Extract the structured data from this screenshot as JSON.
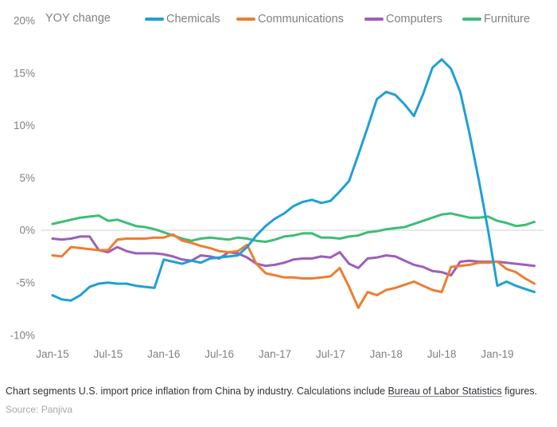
{
  "header": {
    "axis_note": "YOY change"
  },
  "colors": {
    "gridline": "#dbdbdb",
    "axis_text": "#7e8083",
    "caption_text": "#2f3136",
    "source_text": "#a5a7aa"
  },
  "chart_data": {
    "type": "line",
    "title": "",
    "ylabel": "YOY change",
    "ylim": [
      -10,
      20
    ],
    "y_ticks": [
      20,
      15,
      10,
      5,
      0,
      -5,
      -10
    ],
    "y_tick_suffix": "%",
    "zero_gridline": true,
    "grid": "zero-line-only",
    "legend_position": "top",
    "x_tick_labels": [
      "Jan-15",
      "Jul-15",
      "Jan-16",
      "Jul-16",
      "Jan-17",
      "Jul-17",
      "Jan-18",
      "Jul-18",
      "Jan-19"
    ],
    "x_tick_interval_months": 6,
    "x": [
      "Jan-15",
      "Feb-15",
      "Mar-15",
      "Apr-15",
      "May-15",
      "Jun-15",
      "Jul-15",
      "Aug-15",
      "Sep-15",
      "Oct-15",
      "Nov-15",
      "Dec-15",
      "Jan-16",
      "Feb-16",
      "Mar-16",
      "Apr-16",
      "May-16",
      "Jun-16",
      "Jul-16",
      "Aug-16",
      "Sep-16",
      "Oct-16",
      "Nov-16",
      "Dec-16",
      "Jan-17",
      "Feb-17",
      "Mar-17",
      "Apr-17",
      "May-17",
      "Jun-17",
      "Jul-17",
      "Aug-17",
      "Sep-17",
      "Oct-17",
      "Nov-17",
      "Dec-17",
      "Jan-18",
      "Feb-18",
      "Mar-18",
      "Apr-18",
      "May-18",
      "Jun-18",
      "Jul-18",
      "Aug-18",
      "Sep-18",
      "Oct-18",
      "Nov-18",
      "Dec-18",
      "Jan-19",
      "Feb-19",
      "Mar-19",
      "Apr-19",
      "May-19"
    ],
    "series": [
      {
        "name": "Chemicals",
        "color": "#1fa0d5",
        "values": [
          -6.2,
          -6.6,
          -6.7,
          -6.2,
          -5.4,
          -5.1,
          -5.0,
          -5.1,
          -5.1,
          -5.3,
          -5.4,
          -5.5,
          -2.8,
          -3.0,
          -3.2,
          -2.9,
          -3.1,
          -2.7,
          -2.6,
          -2.5,
          -2.4,
          -1.6,
          -0.5,
          0.4,
          1.1,
          1.6,
          2.3,
          2.7,
          2.9,
          2.6,
          2.8,
          3.7,
          4.7,
          7.2,
          9.8,
          12.5,
          13.2,
          12.9,
          12.0,
          10.9,
          13.0,
          15.5,
          16.3,
          15.4,
          13.2,
          9.2,
          4.8,
          0.0,
          -5.3,
          -4.9,
          -5.3,
          -5.6,
          -5.9
        ]
      },
      {
        "name": "Communications",
        "color": "#ee7d31",
        "values": [
          -2.4,
          -2.5,
          -1.6,
          -1.7,
          -1.8,
          -1.9,
          -1.9,
          -0.9,
          -0.8,
          -0.8,
          -0.8,
          -0.7,
          -0.7,
          -0.4,
          -1.0,
          -1.2,
          -1.5,
          -1.7,
          -2.0,
          -2.1,
          -2.0,
          -1.4,
          -3.2,
          -4.1,
          -4.3,
          -4.5,
          -4.5,
          -4.6,
          -4.6,
          -4.5,
          -4.4,
          -3.6,
          -5.4,
          -7.4,
          -5.9,
          -6.2,
          -5.7,
          -5.5,
          -5.2,
          -4.9,
          -5.3,
          -5.7,
          -5.9,
          -3.5,
          -3.4,
          -3.3,
          -3.1,
          -3.1,
          -3.0,
          -3.7,
          -4.0,
          -4.6,
          -5.1
        ]
      },
      {
        "name": "Computers",
        "color": "#9c5fb8",
        "values": [
          -0.8,
          -0.9,
          -0.8,
          -0.6,
          -0.6,
          -1.9,
          -2.1,
          -1.6,
          -2.0,
          -2.2,
          -2.2,
          -2.2,
          -2.3,
          -2.5,
          -2.8,
          -2.9,
          -2.4,
          -2.5,
          -2.7,
          -2.1,
          -2.2,
          -2.6,
          -3.2,
          -3.4,
          -3.3,
          -3.1,
          -2.8,
          -2.7,
          -2.7,
          -2.5,
          -2.6,
          -2.1,
          -3.2,
          -3.6,
          -2.7,
          -2.6,
          -2.4,
          -2.5,
          -2.9,
          -3.3,
          -3.5,
          -3.9,
          -4.0,
          -4.3,
          -3.0,
          -2.9,
          -3.0,
          -3.0,
          -3.0,
          -3.1,
          -3.2,
          -3.3,
          -3.4
        ]
      },
      {
        "name": "Furniture",
        "color": "#3dbe74",
        "values": [
          0.6,
          0.8,
          1.0,
          1.2,
          1.3,
          1.4,
          0.9,
          1.0,
          0.7,
          0.4,
          0.3,
          0.1,
          -0.2,
          -0.5,
          -0.8,
          -1.0,
          -0.8,
          -0.7,
          -0.8,
          -0.9,
          -0.7,
          -0.8,
          -1.0,
          -1.1,
          -0.9,
          -0.6,
          -0.5,
          -0.3,
          -0.3,
          -0.7,
          -0.7,
          -0.8,
          -0.6,
          -0.5,
          -0.2,
          -0.1,
          0.1,
          0.2,
          0.3,
          0.6,
          0.9,
          1.2,
          1.5,
          1.6,
          1.4,
          1.2,
          1.2,
          1.3,
          0.9,
          0.7,
          0.4,
          0.5,
          0.8
        ]
      }
    ]
  },
  "footer": {
    "caption_before": "Chart segments U.S. import price inflation from China by industry. Calculations include ",
    "link_text": "Bureau of Labor Statistics",
    "caption_after": " figures.",
    "source": "Source: Panjiva"
  }
}
